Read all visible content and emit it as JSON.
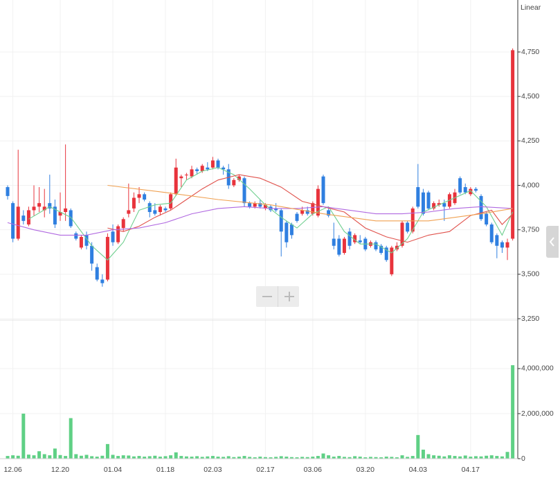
{
  "chart_data": [
    {
      "type": "candlestick",
      "scale_label": "Linear",
      "x": [
        0,
        1,
        2,
        3,
        4,
        5,
        6,
        7,
        8,
        9,
        10,
        11,
        12,
        13,
        14,
        15,
        16,
        17,
        18,
        19,
        20,
        21,
        22,
        23,
        24,
        25,
        26,
        27,
        28,
        29,
        30,
        31,
        32,
        33,
        34,
        35,
        36,
        37,
        38,
        39,
        40,
        41,
        42,
        43,
        44,
        45,
        46,
        47,
        48,
        49,
        50,
        51,
        52,
        53,
        54,
        55,
        56,
        57,
        58,
        59,
        60,
        61,
        62,
        63,
        64,
        65,
        66,
        67,
        68,
        69,
        70,
        71,
        72,
        73,
        74,
        75,
        76,
        77,
        78,
        79,
        80,
        81,
        82,
        83,
        84,
        85,
        86,
        87,
        88,
        89,
        90,
        91,
        92,
        93,
        94,
        95,
        96
      ],
      "open": [
        3990,
        3900,
        3700,
        3830,
        3780,
        3860,
        3880,
        3860,
        3900,
        3880,
        3830,
        3850,
        3860,
        3730,
        3650,
        3720,
        3660,
        3540,
        3470,
        3470,
        3740,
        3680,
        3760,
        3840,
        3870,
        3930,
        3950,
        3900,
        3860,
        3850,
        3870,
        3870,
        3950,
        4040,
        4060,
        4050,
        4090,
        4080,
        4100,
        4100,
        4140,
        4100,
        4090,
        4000,
        4030,
        4040,
        3900,
        3880,
        3900,
        3870,
        3880,
        3870,
        3860,
        3790,
        3780,
        3840,
        3840,
        3860,
        3840,
        3830,
        4050,
        3860,
        3700,
        3700,
        3620,
        3740,
        3680,
        3690,
        3700,
        3660,
        3680,
        3660,
        3650,
        3500,
        3640,
        3660,
        3790,
        3740,
        3990,
        3960,
        3960,
        3870,
        3890,
        3900,
        3880,
        3900,
        4040,
        3990,
        3950,
        3980,
        3940,
        3840,
        3780,
        3720,
        3680,
        3650,
        3700
      ],
      "high": [
        4000,
        3910,
        4200,
        3860,
        3880,
        4000,
        3990,
        3980,
        4060,
        3920,
        3960,
        4230,
        3870,
        3740,
        3720,
        3740,
        3680,
        3560,
        3500,
        3730,
        3780,
        3780,
        3820,
        4010,
        3960,
        3990,
        3960,
        3910,
        3900,
        3890,
        3880,
        3960,
        4150,
        4060,
        4070,
        4110,
        4100,
        4120,
        4130,
        4160,
        4150,
        4110,
        4120,
        4040,
        4060,
        4050,
        3910,
        3910,
        3920,
        3900,
        3890,
        3900,
        3870,
        3800,
        3790,
        3850,
        3880,
        3880,
        3910,
        4000,
        4060,
        3870,
        3790,
        3720,
        3710,
        3760,
        3730,
        3720,
        3710,
        3690,
        3690,
        3670,
        3660,
        3660,
        3680,
        3800,
        3800,
        3880,
        4120,
        3980,
        3970,
        3910,
        3920,
        3920,
        3960,
        3980,
        4050,
        4010,
        3990,
        3990,
        3950,
        3850,
        3790,
        3730,
        3690,
        3700,
        4770
      ],
      "low": [
        3920,
        3680,
        3690,
        3780,
        3770,
        3830,
        3850,
        3820,
        3840,
        3760,
        3800,
        3800,
        3760,
        3690,
        3640,
        3640,
        3520,
        3460,
        3430,
        3460,
        3660,
        3670,
        3740,
        3820,
        3850,
        3900,
        3910,
        3820,
        3830,
        3830,
        3850,
        3860,
        3940,
        3990,
        4030,
        4040,
        4060,
        4070,
        4080,
        4090,
        4090,
        4060,
        3980,
        3990,
        4020,
        3880,
        3870,
        3870,
        3870,
        3860,
        3850,
        3850,
        3600,
        3650,
        3700,
        3790,
        3830,
        3830,
        3830,
        3820,
        3890,
        3820,
        3640,
        3600,
        3610,
        3640,
        3670,
        3670,
        3630,
        3650,
        3630,
        3610,
        3570,
        3490,
        3630,
        3650,
        3730,
        3730,
        3870,
        3830,
        3860,
        3860,
        3880,
        3800,
        3870,
        3890,
        3950,
        3950,
        3940,
        3960,
        3800,
        3770,
        3670,
        3590,
        3620,
        3580,
        3690
      ],
      "close": [
        3940,
        3700,
        3880,
        3800,
        3860,
        3880,
        3900,
        3880,
        3870,
        3780,
        3850,
        3870,
        3770,
        3700,
        3710,
        3660,
        3560,
        3470,
        3450,
        3710,
        3680,
        3770,
        3810,
        3860,
        3930,
        3950,
        3920,
        3850,
        3840,
        3880,
        3860,
        3950,
        4100,
        4050,
        4060,
        4090,
        4080,
        4110,
        4090,
        4140,
        4100,
        4090,
        4000,
        4030,
        4050,
        3900,
        3880,
        3900,
        3880,
        3890,
        3860,
        3860,
        3740,
        3680,
        3720,
        3800,
        3860,
        3840,
        3900,
        3980,
        3900,
        3830,
        3660,
        3610,
        3700,
        3660,
        3720,
        3680,
        3640,
        3680,
        3640,
        3620,
        3580,
        3650,
        3660,
        3790,
        3740,
        3870,
        3880,
        3840,
        3870,
        3900,
        3900,
        3880,
        3950,
        3960,
        3960,
        3960,
        3980,
        3970,
        3810,
        3780,
        3680,
        3660,
        3650,
        3680,
        4760
      ],
      "up_color": "#e8333c",
      "down_color": "#2f7fe0",
      "overlays": [
        {
          "color": "#6fcf8f",
          "x": [
            4,
            8,
            12,
            16,
            19,
            22,
            25,
            28,
            31,
            34,
            37,
            40,
            43,
            46,
            49,
            52,
            55,
            58,
            61,
            64,
            67,
            70,
            73,
            76,
            79,
            82,
            85,
            88,
            91,
            94,
            96
          ],
          "values": [
            3810,
            3880,
            3820,
            3660,
            3580,
            3680,
            3860,
            3890,
            3900,
            4030,
            4080,
            4100,
            4060,
            3980,
            3890,
            3820,
            3760,
            3840,
            3880,
            3740,
            3670,
            3670,
            3620,
            3700,
            3850,
            3890,
            3930,
            3970,
            3880,
            3720,
            3850
          ]
        },
        {
          "color": "#e0504a",
          "x": [
            19,
            22,
            25,
            28,
            31,
            34,
            37,
            40,
            44,
            48,
            52,
            56,
            60,
            64,
            68,
            72,
            76,
            80,
            84,
            88,
            92,
            94,
            96
          ],
          "values": [
            3760,
            3740,
            3770,
            3820,
            3860,
            3920,
            3980,
            4030,
            4060,
            4040,
            3990,
            3910,
            3880,
            3850,
            3760,
            3710,
            3680,
            3720,
            3740,
            3830,
            3860,
            3780,
            3840
          ]
        },
        {
          "color": "#b068e0",
          "x": [
            0,
            5,
            10,
            15,
            20,
            25,
            30,
            35,
            40,
            45,
            50,
            55,
            60,
            65,
            70,
            75,
            80,
            85,
            90,
            96
          ],
          "values": [
            3790,
            3750,
            3720,
            3720,
            3750,
            3760,
            3790,
            3840,
            3870,
            3880,
            3870,
            3870,
            3880,
            3860,
            3840,
            3840,
            3850,
            3870,
            3880,
            3870
          ]
        },
        {
          "color": "#f0a050",
          "x": [
            19,
            30,
            40,
            50,
            60,
            70,
            80,
            90,
            96
          ],
          "values": [
            4000,
            3960,
            3920,
            3890,
            3840,
            3800,
            3800,
            3840,
            3870
          ]
        }
      ],
      "xlim": [
        -1.45,
        96.97
      ],
      "ylim": [
        3250,
        5011
      ],
      "yticks": [
        {
          "value": 3250,
          "label": "3,250"
        },
        {
          "value": 3500,
          "label": "3,500"
        },
        {
          "value": 3750,
          "label": "3,750"
        },
        {
          "value": 4000,
          "label": "4,000"
        },
        {
          "value": 4250,
          "label": "4,250"
        },
        {
          "value": 4500,
          "label": "4,500"
        },
        {
          "value": 4750,
          "label": "4,750"
        }
      ]
    },
    {
      "type": "bar",
      "color": "#5fd085",
      "x": [
        0,
        1,
        2,
        3,
        4,
        5,
        6,
        7,
        8,
        9,
        10,
        11,
        12,
        13,
        14,
        15,
        16,
        17,
        18,
        19,
        20,
        21,
        22,
        23,
        24,
        25,
        26,
        27,
        28,
        29,
        30,
        31,
        32,
        33,
        34,
        35,
        36,
        37,
        38,
        39,
        40,
        41,
        42,
        43,
        44,
        45,
        46,
        47,
        48,
        49,
        50,
        51,
        52,
        53,
        54,
        55,
        56,
        57,
        58,
        59,
        60,
        61,
        62,
        63,
        64,
        65,
        66,
        67,
        68,
        69,
        70,
        71,
        72,
        73,
        74,
        75,
        76,
        77,
        78,
        79,
        80,
        81,
        82,
        83,
        84,
        85,
        86,
        87,
        88,
        89,
        90,
        91,
        92,
        93,
        94,
        95,
        96
      ],
      "values": [
        120000,
        150000,
        130000,
        2000000,
        180000,
        150000,
        330000,
        200000,
        150000,
        450000,
        160000,
        120000,
        1800000,
        200000,
        130000,
        170000,
        110000,
        90000,
        130000,
        650000,
        170000,
        120000,
        150000,
        140000,
        100000,
        120000,
        90000,
        110000,
        130000,
        90000,
        110000,
        150000,
        280000,
        120000,
        100000,
        90000,
        110000,
        80000,
        100000,
        120000,
        90000,
        80000,
        110000,
        70000,
        90000,
        120000,
        80000,
        60000,
        90000,
        70000,
        60000,
        80000,
        110000,
        90000,
        70000,
        60000,
        80000,
        70000,
        90000,
        120000,
        230000,
        150000,
        90000,
        120000,
        80000,
        70000,
        110000,
        90000,
        60000,
        80000,
        70000,
        60000,
        90000,
        80000,
        60000,
        150000,
        80000,
        120000,
        1050000,
        400000,
        200000,
        150000,
        130000,
        100000,
        150000,
        120000,
        100000,
        140000,
        90000,
        110000,
        100000,
        130000,
        150000,
        120000,
        100000,
        300000,
        4150000
      ],
      "xlim": [
        -1.45,
        96.97
      ],
      "ylim": [
        0,
        6060000
      ],
      "yticks": [
        0,
        {
          "value": 2000000,
          "label": "2,000,000"
        },
        {
          "value": 4000000,
          "label": "4,000,000"
        }
      ],
      "xticks": [
        {
          "value": 1,
          "label": "12.06"
        },
        {
          "value": 10,
          "label": "12.20"
        },
        {
          "value": 20,
          "label": "01.04"
        },
        {
          "value": 30,
          "label": "01.18"
        },
        {
          "value": 39,
          "label": "02.03"
        },
        {
          "value": 49,
          "label": "02.17"
        },
        {
          "value": 58,
          "label": "03.06"
        },
        {
          "value": 68,
          "label": "03.20"
        },
        {
          "value": 78,
          "label": "04.03"
        },
        {
          "value": 88,
          "label": "04.17"
        }
      ]
    }
  ]
}
